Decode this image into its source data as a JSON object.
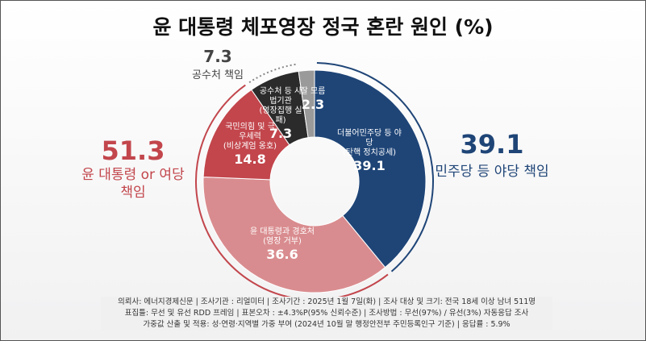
{
  "chart_data": {
    "type": "pie",
    "title": "윤 대통령 체포영장 정국 혼란 원인 (%)",
    "slices": [
      {
        "label": "더불어민주당 등 야당",
        "sub": "(탄핵 정치공세)",
        "value": 39.1,
        "color": "#1f4577"
      },
      {
        "label": "윤 대통령과 경호처",
        "sub": "(영장 거부)",
        "value": 36.6,
        "color": "#d98c8f"
      },
      {
        "label": "국민의힘 및 극우세력",
        "sub": "(비상계엄 옹호)",
        "value": 14.8,
        "color": "#c2464c"
      },
      {
        "label": "공수처 등 사법기관",
        "sub": "(영장집행 실패)",
        "value": 7.3,
        "color": "#2b2b2b"
      },
      {
        "label": "잘 모름",
        "sub": "",
        "value": 2.3,
        "color": "#9a9a9a"
      }
    ],
    "groups": [
      {
        "value": "39.1",
        "label": "민주당 등 야당 책임",
        "color": "#1f4577"
      },
      {
        "value": "51.3",
        "label": "윤 대통령 or 여당 책임",
        "color": "#c2464c"
      },
      {
        "value": "7.3",
        "label": "공수처 책임",
        "color": "#444444"
      }
    ]
  },
  "footer": [
    "의뢰사: 에너지경제신문 | 조사기관 : 리얼미터  |  조사기간 : 2025년 1월 7일(화) | 조사 대상 및 크기: 전국 18세 이상 남녀 511명",
    "표집틀: 무선 및 유선 RDD 프레임 | 표본오차 : ±4.3%P(95% 신뢰수준) | 조사방법 : 무선(97%) / 유선(3%) 자동응답 조사",
    "가중값 산출 및 적용: 성·연령·지역별 가중 부여 (2024년 10월 말 행정안전부 주민등록인구 기준) | 응답률 : 5.9%"
  ]
}
